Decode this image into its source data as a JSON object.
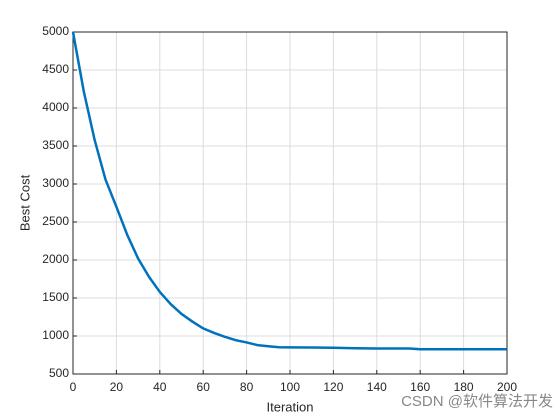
{
  "chart_data": {
    "type": "line",
    "xlabel": "Iteration",
    "ylabel": "Best Cost",
    "annotation": "CSDN @软件算法开发",
    "x": [
      0,
      5,
      10,
      15,
      20,
      25,
      30,
      35,
      40,
      45,
      50,
      55,
      60,
      65,
      70,
      75,
      80,
      85,
      90,
      95,
      100,
      110,
      120,
      130,
      140,
      150,
      155,
      160,
      170,
      180,
      190,
      200
    ],
    "series": [
      {
        "name": "Best Cost",
        "color": "#0072bd",
        "values": [
          5000,
          4214,
          3576,
          3057,
          2700,
          2330,
          2020,
          1780,
          1580,
          1420,
          1290,
          1190,
          1100,
          1040,
          990,
          945,
          915,
          880,
          865,
          852,
          850,
          848,
          845,
          838,
          835,
          835,
          835,
          825,
          825,
          825,
          825,
          825
        ]
      }
    ],
    "xlim": [
      0,
      200
    ],
    "xticks": [
      0,
      20,
      40,
      60,
      80,
      100,
      120,
      140,
      160,
      180,
      200
    ],
    "ylim": [
      500,
      5000
    ],
    "yticks": [
      500,
      1000,
      1500,
      2000,
      2500,
      3000,
      3500,
      4000,
      4500,
      5000
    ],
    "grid": true
  }
}
